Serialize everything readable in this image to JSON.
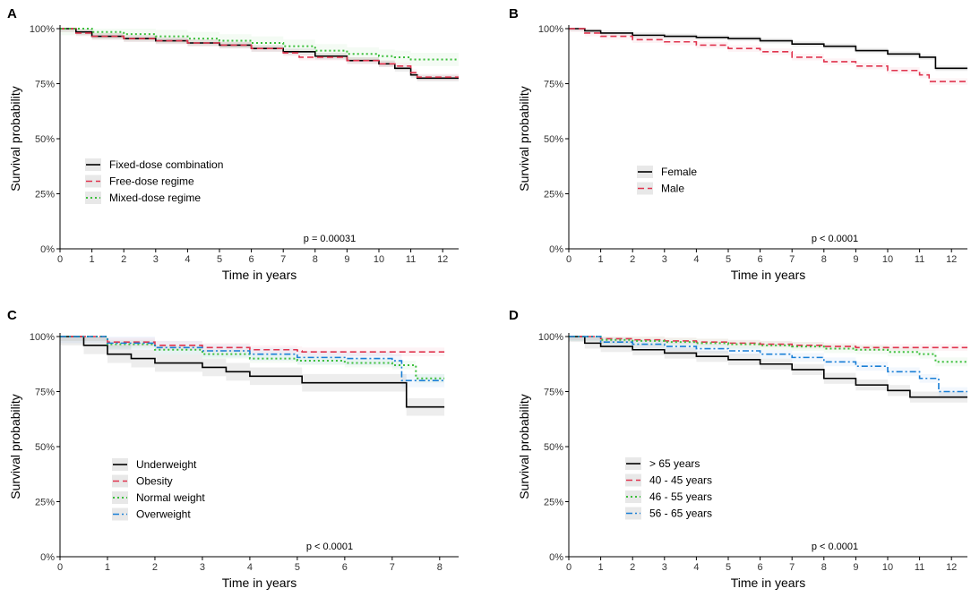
{
  "colors": {
    "black": "#000000",
    "red": "#e0344e",
    "green": "#3cbf3c",
    "blue": "#1a7fd6"
  },
  "chart_data": [
    {
      "type": "line",
      "panel_label": "A",
      "xlabel": "Time in years",
      "ylabel": "Survival probability",
      "xlim": [
        0,
        12.5
      ],
      "ylim": [
        0,
        1
      ],
      "xticks": [
        "0",
        "1",
        "2",
        "3",
        "4",
        "5",
        "6",
        "7",
        "8",
        "9",
        "10",
        "11",
        "12"
      ],
      "yticks": [
        "0%",
        "25%",
        "50%",
        "75%",
        "100%"
      ],
      "pvalue": "p = 0.00031",
      "series": [
        {
          "name": "Fixed-dose combination",
          "color": "#000000",
          "dash": "solid",
          "x": [
            0,
            0.5,
            1,
            2,
            3,
            4,
            5,
            6,
            7,
            8,
            9,
            10,
            10.5,
            11,
            11.2,
            12.5
          ],
          "y": [
            1,
            0.985,
            0.965,
            0.955,
            0.945,
            0.935,
            0.925,
            0.91,
            0.895,
            0.875,
            0.855,
            0.84,
            0.82,
            0.79,
            0.775,
            0.775
          ],
          "band": 0.015
        },
        {
          "name": "Free-dose regime",
          "color": "#e0344e",
          "dash": "dashed",
          "x": [
            0,
            0.5,
            1,
            2,
            3,
            4,
            5,
            6,
            7,
            7.5,
            8,
            9,
            10,
            10.5,
            11,
            11.2,
            12.5
          ],
          "y": [
            1,
            0.98,
            0.965,
            0.955,
            0.945,
            0.935,
            0.925,
            0.91,
            0.89,
            0.87,
            0.87,
            0.855,
            0.84,
            0.83,
            0.8,
            0.78,
            0.78
          ],
          "band": 0.015
        },
        {
          "name": "Mixed-dose regime",
          "color": "#3cbf3c",
          "dash": "dotted",
          "x": [
            0,
            1,
            2,
            3,
            4,
            5,
            6,
            7,
            8,
            9,
            10,
            10.5,
            11,
            12.5
          ],
          "y": [
            1,
            0.985,
            0.975,
            0.965,
            0.955,
            0.945,
            0.935,
            0.92,
            0.9,
            0.885,
            0.875,
            0.87,
            0.86,
            0.86
          ],
          "band": 0.03
        }
      ]
    },
    {
      "type": "line",
      "panel_label": "B",
      "xlabel": "Time in years",
      "ylabel": "Survival probability",
      "xlim": [
        0,
        12.5
      ],
      "ylim": [
        0,
        1
      ],
      "xticks": [
        "0",
        "1",
        "2",
        "3",
        "4",
        "5",
        "6",
        "7",
        "8",
        "9",
        "10",
        "11",
        "12"
      ],
      "yticks": [
        "0%",
        "25%",
        "50%",
        "75%",
        "100%"
      ],
      "pvalue": "p < 0.0001",
      "series": [
        {
          "name": "Female",
          "color": "#000000",
          "dash": "solid",
          "x": [
            0,
            0.5,
            1,
            2,
            3,
            4,
            5,
            6,
            7,
            8,
            9,
            10,
            11,
            11.5,
            12.5
          ],
          "y": [
            1,
            0.99,
            0.98,
            0.97,
            0.965,
            0.96,
            0.955,
            0.945,
            0.93,
            0.92,
            0.9,
            0.885,
            0.87,
            0.82,
            0.82
          ],
          "band": 0.012
        },
        {
          "name": "Male",
          "color": "#e0344e",
          "dash": "dashed",
          "x": [
            0,
            0.5,
            1,
            2,
            3,
            4,
            5,
            6,
            7,
            8,
            9,
            10,
            11,
            11.3,
            12.5
          ],
          "y": [
            1,
            0.98,
            0.965,
            0.95,
            0.94,
            0.925,
            0.91,
            0.895,
            0.87,
            0.85,
            0.83,
            0.81,
            0.79,
            0.76,
            0.76
          ],
          "band": 0.015
        }
      ]
    },
    {
      "type": "line",
      "panel_label": "C",
      "xlabel": "Time in years",
      "ylabel": "Survival probability",
      "xlim": [
        0,
        8.4
      ],
      "ylim": [
        0,
        1
      ],
      "xticks": [
        "0",
        "1",
        "2",
        "3",
        "4",
        "5",
        "6",
        "7",
        "8"
      ],
      "yticks": [
        "0%",
        "25%",
        "50%",
        "75%",
        "100%"
      ],
      "pvalue": "p < 0.0001",
      "series": [
        {
          "name": "Underweight",
          "color": "#000000",
          "dash": "solid",
          "x": [
            0,
            0.5,
            1,
            1.5,
            2,
            3,
            3.5,
            4,
            5,
            5.1,
            7.25,
            7.3,
            8.1
          ],
          "y": [
            1,
            0.96,
            0.92,
            0.9,
            0.88,
            0.86,
            0.84,
            0.82,
            0.82,
            0.79,
            0.79,
            0.68,
            0.68
          ],
          "band": 0.04
        },
        {
          "name": "Obesity",
          "color": "#e0344e",
          "dash": "dashed",
          "x": [
            0,
            1,
            2,
            3,
            4,
            5,
            5.1,
            8.1
          ],
          "y": [
            1,
            0.975,
            0.96,
            0.95,
            0.94,
            0.935,
            0.93,
            0.93
          ],
          "band": 0.02
        },
        {
          "name": "Normal weight",
          "color": "#3cbf3c",
          "dash": "dotted",
          "x": [
            0,
            1,
            2,
            3,
            4,
            5,
            6,
            7,
            7.3,
            7.5,
            8.1
          ],
          "y": [
            1,
            0.965,
            0.94,
            0.92,
            0.9,
            0.89,
            0.88,
            0.87,
            0.87,
            0.81,
            0.81
          ],
          "band": 0.02
        },
        {
          "name": "Overweight",
          "color": "#1a7fd6",
          "dash": "dotdash",
          "x": [
            0,
            1,
            2,
            3,
            4,
            5,
            6,
            7,
            7.2,
            8.1
          ],
          "y": [
            1,
            0.97,
            0.95,
            0.935,
            0.92,
            0.905,
            0.9,
            0.89,
            0.8,
            0.8
          ],
          "band": 0.03
        }
      ]
    },
    {
      "type": "line",
      "panel_label": "D",
      "xlabel": "Time in years",
      "ylabel": "Survival probability",
      "xlim": [
        0,
        12.5
      ],
      "ylim": [
        0,
        1
      ],
      "xticks": [
        "0",
        "1",
        "2",
        "3",
        "4",
        "5",
        "6",
        "7",
        "8",
        "9",
        "10",
        "11",
        "12"
      ],
      "yticks": [
        "0%",
        "25%",
        "50%",
        "75%",
        "100%"
      ],
      "pvalue": "p < 0.0001",
      "series": [
        {
          "name": "> 65 years",
          "color": "#000000",
          "dash": "solid",
          "x": [
            0,
            0.5,
            1,
            2,
            3,
            4,
            5,
            6,
            7,
            8,
            9,
            10,
            10.7,
            12.5
          ],
          "y": [
            1,
            0.97,
            0.955,
            0.94,
            0.925,
            0.91,
            0.895,
            0.875,
            0.85,
            0.81,
            0.78,
            0.755,
            0.725,
            0.725
          ],
          "band": 0.025
        },
        {
          "name": "40 - 45 years",
          "color": "#e0344e",
          "dash": "dashed",
          "x": [
            0,
            1,
            2,
            3,
            4,
            5,
            6,
            7,
            8,
            9,
            12.5
          ],
          "y": [
            1,
            0.99,
            0.985,
            0.98,
            0.975,
            0.97,
            0.965,
            0.96,
            0.955,
            0.95,
            0.95
          ],
          "band": 0.015
        },
        {
          "name": "46 - 55 years",
          "color": "#3cbf3c",
          "dash": "dotted",
          "x": [
            0,
            1,
            2,
            3,
            4,
            5,
            6,
            7,
            8,
            9,
            10,
            11,
            11.5,
            12.5
          ],
          "y": [
            1,
            0.985,
            0.98,
            0.975,
            0.97,
            0.965,
            0.96,
            0.955,
            0.945,
            0.94,
            0.93,
            0.92,
            0.885,
            0.885
          ],
          "band": 0.02
        },
        {
          "name": "56 - 65 years",
          "color": "#1a7fd6",
          "dash": "dotdash",
          "x": [
            0,
            1,
            2,
            3,
            4,
            5,
            6,
            7,
            8,
            9,
            10,
            11,
            11.6,
            12.5
          ],
          "y": [
            1,
            0.975,
            0.965,
            0.955,
            0.945,
            0.935,
            0.92,
            0.905,
            0.885,
            0.865,
            0.84,
            0.81,
            0.75,
            0.75
          ],
          "band": 0.02
        }
      ]
    }
  ]
}
